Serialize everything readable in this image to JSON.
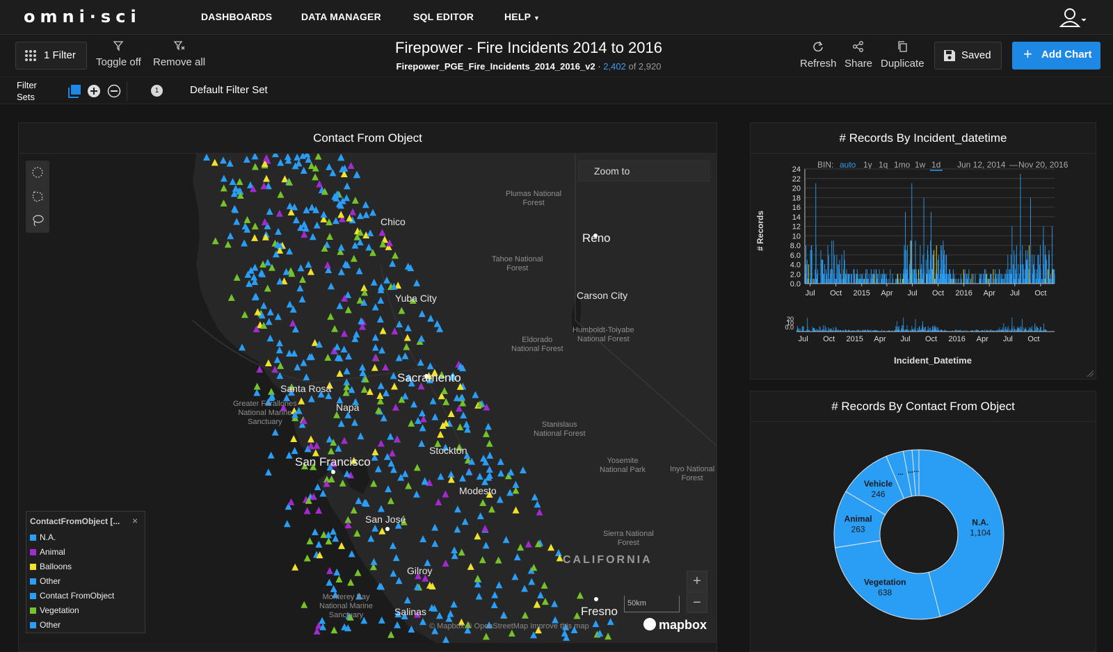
{
  "nav": {
    "logo": "omni·sci",
    "links": [
      "DASHBOARDS",
      "DATA MANAGER",
      "SQL EDITOR",
      "HELP"
    ]
  },
  "toolbar": {
    "filter_label": "1 Filter",
    "toggle_off": "Toggle off",
    "remove_all": "Remove all",
    "title": "Firepower - Fire Incidents 2014 to 2016",
    "dataset": "Firepower_PGE_Fire_Incidents_2014_2016_v2",
    "separator": "·",
    "filtered_count": "2,402",
    "total_text": "of 2,920",
    "refresh": "Refresh",
    "share": "Share",
    "duplicate": "Duplicate",
    "saved": "Saved",
    "add_chart": "Add Chart"
  },
  "filter_sets": {
    "label_line1": "Filter",
    "label_line2": "Sets",
    "badge": "1",
    "name": "Default Filter Set"
  },
  "map_panel": {
    "title": "Contact From Object",
    "zoom_to": "Zoom to",
    "scale": "50km",
    "attribution": "© Mapbox  © OpenStreetMap   Improve this map",
    "mapbox": "mapbox",
    "labels": {
      "chico": "Chico",
      "reno": "Reno",
      "plumas": "Plumas National\nForest",
      "tahoe": "Tahoe National\nForest",
      "carson": "Carson City",
      "yuba": "Yuba City",
      "humboldt": "Humboldt-Toiyabe\nNational Forest",
      "eldorado": "Eldorado\nNational Forest",
      "sacramento": "Sacramento",
      "santa_rosa": "Santa Rosa",
      "napa": "Napa",
      "farallones": "Greater Farallones\nNational Marine\nSanctuary",
      "stanislaus": "Stanislaus\nNational Forest",
      "stockton": "Stockton",
      "sf": "San Francisco",
      "yosemite": "Yosemite\nNational Park",
      "inyo": "Inyo National\nForest",
      "modesto": "Modesto",
      "san_jose": "San José",
      "sierra": "Sierra National\nForest",
      "california": "CALIFORNIA",
      "gilroy": "Gilroy",
      "monterey": "Monterey Bay\nNational Marine\nSanctuary",
      "salinas": "Salinas",
      "fresno": "Fresno"
    },
    "legend": {
      "title": "ContactFromObject [...",
      "close": "×",
      "items": [
        {
          "label": "N.A.",
          "color": "#2a9df4"
        },
        {
          "label": "Animal",
          "color": "#a22bd0"
        },
        {
          "label": "Balloons",
          "color": "#f0e12c"
        },
        {
          "label": "Other",
          "color": "#2a9df4"
        },
        {
          "label": "Contact FromObject",
          "color": "#2a9df4"
        },
        {
          "label": "Vegetation",
          "color": "#76c22a"
        },
        {
          "label": "Other",
          "color": "#2a9df4"
        }
      ]
    }
  },
  "hist_panel": {
    "title": "# Records By Incident_datetime",
    "bin_label": "BIN:",
    "bins": [
      "auto",
      "1y",
      "1q",
      "1mo",
      "1w",
      "1d"
    ],
    "range_start": "Jun 12, 2014",
    "range_sep": "—",
    "range_end": "Nov 20, 2016",
    "xlabel": "Incident_Datetime",
    "ylabel": "# Records"
  },
  "pie_panel": {
    "title": "# Records By Contact From Object"
  },
  "chart_data": [
    {
      "type": "bar",
      "title": "# Records By Incident_datetime",
      "xlabel": "Incident_Datetime",
      "ylabel": "# Records",
      "ylim": [
        0,
        24
      ],
      "yticks": [
        "0.0",
        "2.0",
        "4.0",
        "6.0",
        "8.0",
        "10",
        "12",
        "14",
        "16",
        "18",
        "20",
        "22",
        "24"
      ],
      "xticks": [
        "Jul",
        "Oct",
        "2015",
        "Apr",
        "Jul",
        "Oct",
        "2016",
        "Apr",
        "Jul",
        "Oct"
      ],
      "brush_yticks": [
        "20",
        "10",
        "0.0"
      ],
      "x_range": [
        "2014-06-12",
        "2016-11-20"
      ],
      "peaks": [
        {
          "date": "2014-07-20",
          "value": 21
        },
        {
          "date": "2014-09-15",
          "value": 9
        },
        {
          "date": "2015-06-05",
          "value": 15
        },
        {
          "date": "2015-06-28",
          "value": 21
        },
        {
          "date": "2015-08-10",
          "value": 18
        },
        {
          "date": "2015-09-05",
          "value": 15
        },
        {
          "date": "2016-06-20",
          "value": 12
        },
        {
          "date": "2016-07-20",
          "value": 23
        },
        {
          "date": "2016-08-25",
          "value": 18
        },
        {
          "date": "2016-10-10",
          "value": 12
        },
        {
          "date": "2016-11-10",
          "value": 12
        }
      ],
      "grid": true,
      "color": "#2a9df4",
      "highlight_color": "#f0e12c"
    },
    {
      "type": "pie",
      "title": "# Records By Contact From Object",
      "slices": [
        {
          "label": "N.A.",
          "value": 1104
        },
        {
          "label": "Vegetation",
          "value": 638
        },
        {
          "label": "Animal",
          "value": 263
        },
        {
          "label": "Vehicle",
          "value": 246
        },
        {
          "label": "...",
          "value": 80
        },
        {
          "label": "...",
          "value": 40
        },
        {
          "label": "...",
          "value": 31
        }
      ],
      "donut": true,
      "color": "#2a9df4"
    }
  ]
}
